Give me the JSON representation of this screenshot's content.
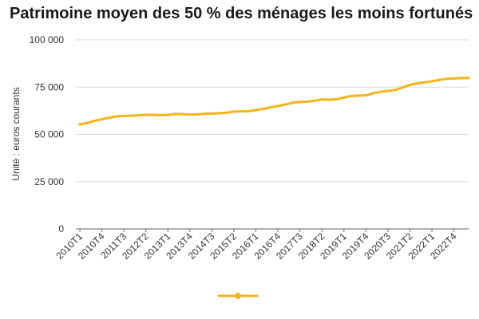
{
  "chart_data": {
    "type": "line",
    "title": "Patrimoine moyen des 50 % des ménages les moins fortunés",
    "ylabel": "Unité : euros courants",
    "xlabel": "",
    "ylim": [
      0,
      100000
    ],
    "y_ticks": [
      "0",
      "25 000",
      "50 000",
      "75 000",
      "100 000"
    ],
    "y_tick_values": [
      0,
      25000,
      50000,
      75000,
      100000
    ],
    "x_tick_labels": [
      "2010T1",
      "2010T4",
      "2011T3",
      "2012T2",
      "2013T1",
      "2013T4",
      "2014T3",
      "2015T2",
      "2016T1",
      "2016T4",
      "2017T3",
      "2018T2",
      "2019T1",
      "2019T4",
      "2020T3",
      "2021T2",
      "2022T1",
      "2022T4"
    ],
    "x": [
      "2010T1",
      "2010T2",
      "2010T3",
      "2010T4",
      "2011T1",
      "2011T2",
      "2011T3",
      "2011T4",
      "2012T1",
      "2012T2",
      "2012T3",
      "2012T4",
      "2013T1",
      "2013T2",
      "2013T3",
      "2013T4",
      "2014T1",
      "2014T2",
      "2014T3",
      "2014T4",
      "2015T1",
      "2015T2",
      "2015T3",
      "2015T4",
      "2016T1",
      "2016T2",
      "2016T3",
      "2016T4",
      "2017T1",
      "2017T2",
      "2017T3",
      "2017T4",
      "2018T1",
      "2018T2",
      "2018T3",
      "2018T4",
      "2019T1",
      "2019T2",
      "2019T3",
      "2019T4",
      "2020T1",
      "2020T2",
      "2020T3",
      "2020T4",
      "2021T1",
      "2021T2",
      "2021T3",
      "2021T4",
      "2022T1",
      "2022T2",
      "2022T3",
      "2022T4",
      "2023T1",
      "2023T2"
    ],
    "series": [
      {
        "name": "",
        "color": "#f4b41a",
        "values": [
          55300,
          56000,
          57200,
          58000,
          58800,
          59500,
          59800,
          59800,
          60100,
          60400,
          60300,
          60100,
          60300,
          60800,
          60700,
          60500,
          60600,
          60900,
          61000,
          61200,
          61500,
          62000,
          62200,
          62300,
          62800,
          63500,
          64300,
          65000,
          65800,
          66700,
          67200,
          67300,
          67800,
          68500,
          68300,
          68600,
          69500,
          70300,
          70500,
          70600,
          71800,
          72500,
          73000,
          73500,
          74800,
          76200,
          77000,
          77500,
          78100,
          78800,
          79400,
          79600,
          79800,
          79800
        ]
      }
    ],
    "grid": "horizontal",
    "legend_position": "bottom"
  }
}
